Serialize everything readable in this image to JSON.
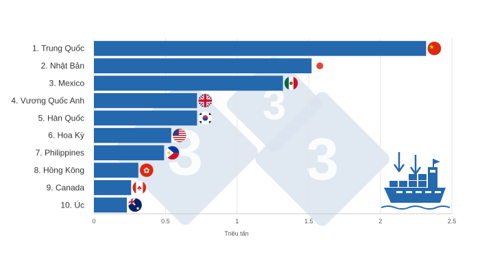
{
  "chart_data": {
    "type": "bar",
    "orientation": "horizontal",
    "categories": [
      "1. Trung Quốc",
      "2. Nhật Bản",
      "3. Mexico",
      "4. Vương Quốc Anh",
      "5. Hàn Quốc",
      "6. Hoa Kỳ",
      "7. Philippines",
      "8. Hồng Kông",
      "9. Canada",
      "10. Úc"
    ],
    "values": [
      2.32,
      1.52,
      1.32,
      0.72,
      0.72,
      0.54,
      0.49,
      0.31,
      0.26,
      0.23
    ],
    "flags": [
      "china-flag",
      "japan-flag",
      "mexico-flag",
      "uk-flag",
      "south-korea-flag",
      "usa-flag",
      "philippines-flag",
      "hong-kong-flag",
      "canada-flag",
      "australia-flag"
    ],
    "xlabel": "Triệu tấn",
    "ylabel": "",
    "title": "",
    "xlim": [
      0,
      2.5
    ],
    "xticks": [
      0,
      0.5,
      1,
      1.5,
      2,
      2.5
    ],
    "xtick_labels": [
      "0",
      "0.5",
      "1",
      "1.5",
      "2",
      "2.5"
    ],
    "grid": true,
    "legend": "none",
    "bar_color": "#2468ae",
    "grid_color": "#e6e6e6"
  },
  "decorations": {
    "watermark": "333-logo-watermark",
    "watermark_glyph": "3",
    "watermark_color": "#dbe4ee",
    "ship_icon": "cargo-ship-icon",
    "ship_color": "#2468ae"
  }
}
